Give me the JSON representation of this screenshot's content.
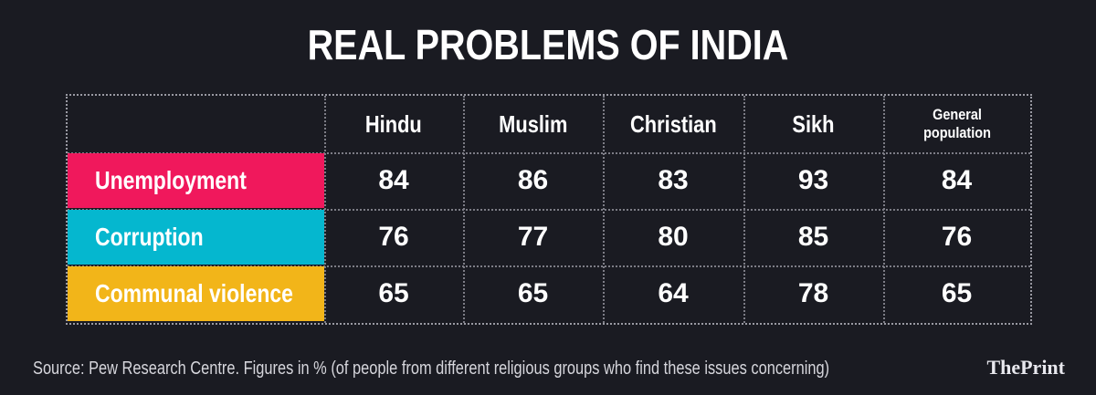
{
  "title": "REAL PROBLEMS OF INDIA",
  "footer": "Source: Pew Research Centre.  Figures in % (of people from different religious groups who find these issues concerning)",
  "brand": "ThePrint",
  "colors": {
    "background": "#1a1b22",
    "unemployment": "#f0185c",
    "corruption": "#05b7cf",
    "communal_violence": "#f2b519"
  },
  "chart_data": {
    "type": "table",
    "title": "REAL PROBLEMS OF INDIA",
    "columns": [
      "Hindu",
      "Muslim",
      "Christian",
      "Sikh",
      "General population"
    ],
    "rows": [
      {
        "label": "Unemployment",
        "values": [
          84,
          86,
          83,
          93,
          84
        ]
      },
      {
        "label": "Corruption",
        "values": [
          76,
          77,
          80,
          85,
          76
        ]
      },
      {
        "label": "Communal violence",
        "values": [
          65,
          65,
          64,
          78,
          65
        ]
      }
    ]
  }
}
